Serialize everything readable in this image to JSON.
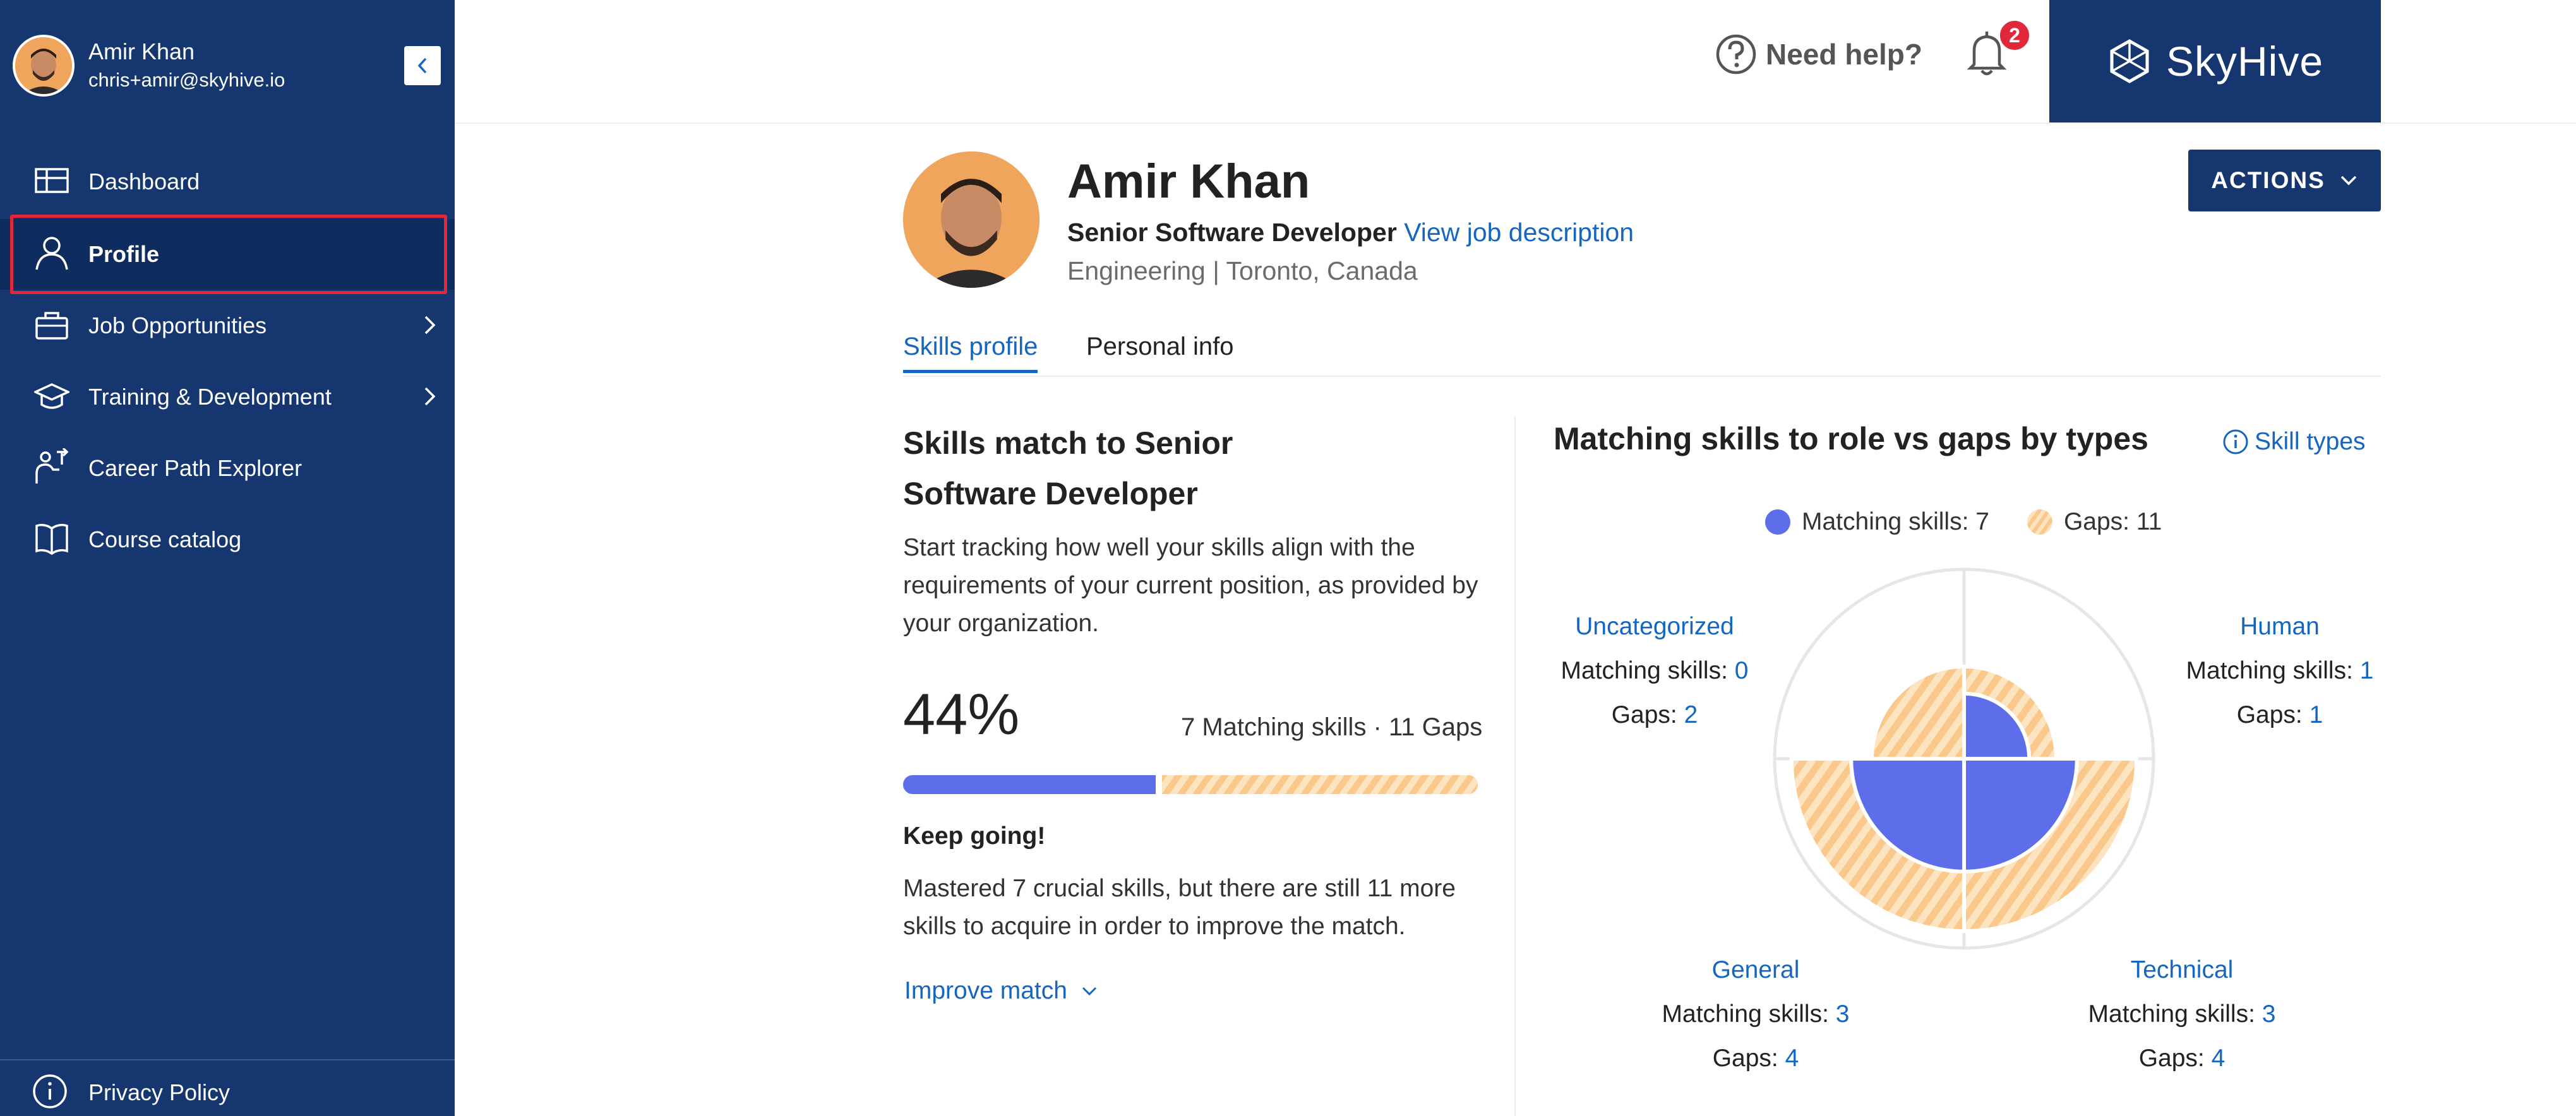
{
  "sidebar": {
    "user": {
      "name": "Amir Khan",
      "email": "chris+amir@skyhive.io"
    },
    "items": [
      {
        "label": "Dashboard",
        "icon": "dashboard-icon"
      },
      {
        "label": "Profile",
        "icon": "user-icon",
        "active": true
      },
      {
        "label": "Job Opportunities",
        "icon": "briefcase-icon",
        "has_children": true
      },
      {
        "label": "Training & Development",
        "icon": "graduation-cap-icon",
        "has_children": true
      },
      {
        "label": "Career Path Explorer",
        "icon": "career-path-icon"
      },
      {
        "label": "Course catalog",
        "icon": "book-icon"
      }
    ],
    "privacy": "Privacy Policy"
  },
  "header": {
    "help": "Need help?",
    "notifications_count": "2",
    "brand": "SkyHive"
  },
  "profile": {
    "name": "Amir Khan",
    "role": "Senior Software Developer",
    "view_job": "View job description",
    "dept": "Engineering | Toronto, Canada",
    "actions": "ACTIONS"
  },
  "tabs": [
    "Skills profile",
    "Personal info"
  ],
  "skills_match": {
    "title": "Skills match to Senior Software Developer",
    "description": "Start tracking how well your skills align with the requirements of your current position, as provided by your organization.",
    "percent": "44%",
    "percent_value": 0.44,
    "summary": "7 Matching skills · 11 Gaps",
    "keep_going": "Keep going!",
    "mastered": "Mastered 7 crucial skills, but there are still 11 more skills to acquire in order to improve the match.",
    "improve": "Improve match"
  },
  "by_types": {
    "title": "Matching skills to role vs gaps by types",
    "skill_types": "Skill types",
    "legend": {
      "matching": "Matching skills: 7",
      "gaps": "Gaps: 11"
    },
    "matching_label": "Matching skills:",
    "gaps_label": "Gaps:",
    "categories": [
      {
        "name": "Uncategorized",
        "matching": "0",
        "gaps": "2"
      },
      {
        "name": "Human",
        "matching": "1",
        "gaps": "1"
      },
      {
        "name": "General",
        "matching": "3",
        "gaps": "4"
      },
      {
        "name": "Technical",
        "matching": "3",
        "gaps": "4"
      }
    ]
  },
  "colors": {
    "sidebar": "#15366f",
    "accent": "#1566c0",
    "matching": "#5e6eea",
    "gaps": "#f9c88a",
    "badge": "#e0283a"
  }
}
